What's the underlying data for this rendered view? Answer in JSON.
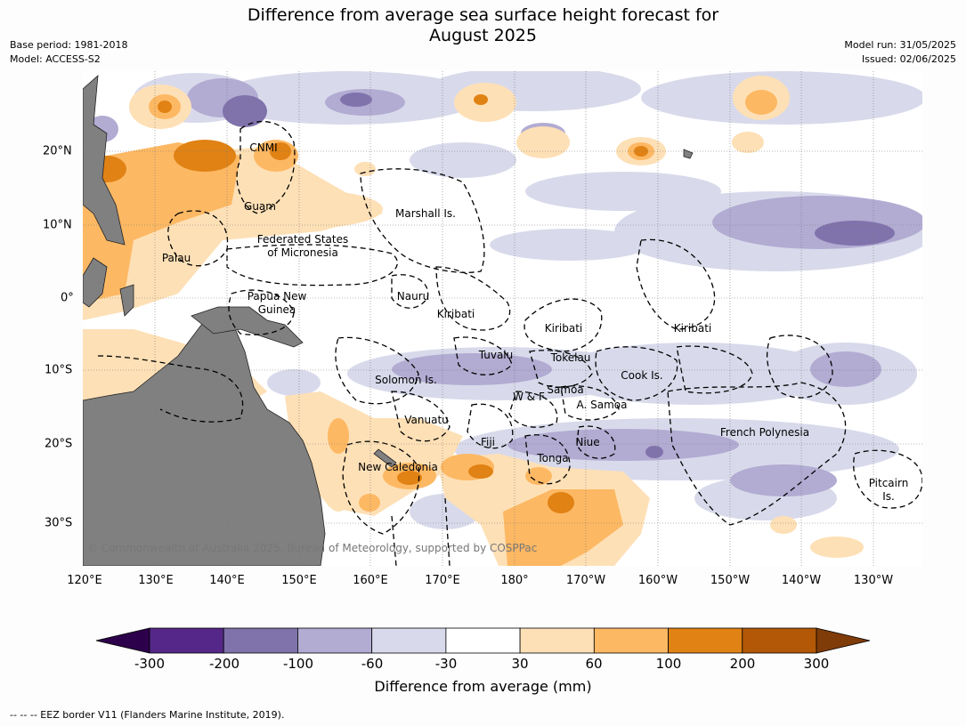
{
  "title": {
    "line1": "Difference from average sea surface height forecast for",
    "line2": "August 2025"
  },
  "meta": {
    "base_period": "Base period: 1981-2018",
    "model": "Model: ACCESS-S2",
    "model_run": "Model run: 31/05/2025",
    "issued": "Issued: 02/06/2025"
  },
  "longitude_labels": [
    "120°E",
    "130°E",
    "140°E",
    "150°E",
    "160°E",
    "170°E",
    "180°",
    "170°W",
    "160°W",
    "150°W",
    "140°W",
    "130°W"
  ],
  "latitude_labels": [
    "20°N",
    "10°N",
    "0°",
    "10°S",
    "20°S",
    "30°S"
  ],
  "places": [
    "CNMI",
    "Guam",
    "Marshall Is.",
    "Federated States",
    "of Micronesia",
    "Palau",
    "Nauru",
    "Papua New",
    "Guinea",
    "Kiribati",
    "Kiribati",
    "Kiribati",
    "Tuvalu",
    "Tokelau",
    "Cook Is.",
    "Solomon Is.",
    "W & F",
    "Samoa",
    "A. Samoa",
    "Vanuatu",
    "Fiji",
    "Niue",
    "Tonga",
    "French Polynesia",
    "New Caledonia",
    "Pitcairn",
    "Is."
  ],
  "copyright": "© Commonwealth of Australia 2025, Bureau of Meteorology, supported by COSPPac",
  "colorbar": {
    "ticks": [
      "-300",
      "-200",
      "-100",
      "-60",
      "-30",
      "30",
      "60",
      "100",
      "200",
      "300"
    ],
    "colors": [
      "#2d004b",
      "#542788",
      "#8073ac",
      "#b2abd2",
      "#d8daeb",
      "#ffffff",
      "#fee0b6",
      "#fdb863",
      "#e08214",
      "#b35806",
      "#7f3b08"
    ],
    "label": "Difference from average (mm)"
  },
  "footnote": "--  --  -- EEZ border V11 (Flanders Marine Institute, 2019).",
  "land_color": "#808080"
}
